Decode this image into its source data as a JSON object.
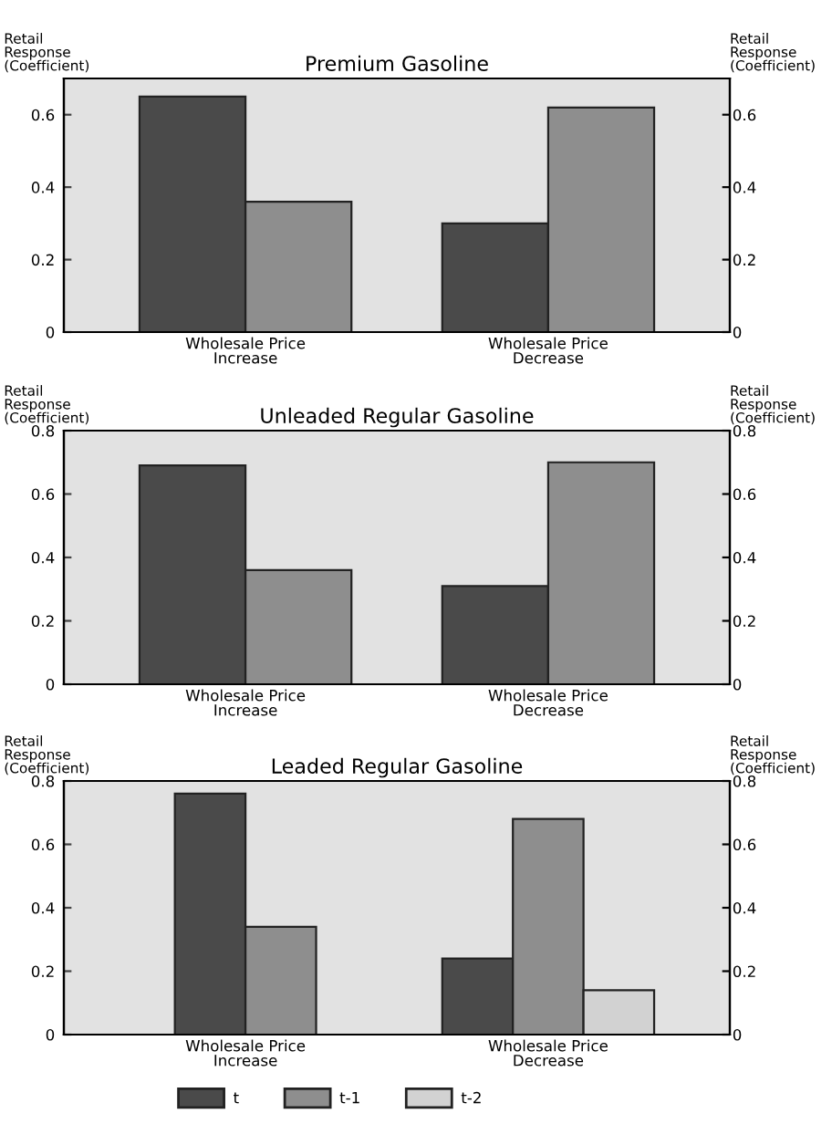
{
  "chart_data": [
    {
      "type": "bar",
      "title": "Premium Gasoline",
      "ylabel": "Retail\nResponse\n(Coefficient)",
      "y2label": "Retail\nResponse\n(Coefficient)",
      "categories": [
        "Wholesale Price\nIncrease",
        "Wholesale Price\nDecrease"
      ],
      "series": [
        {
          "color": "#4a4a4a",
          "values": [
            0.65,
            0.3
          ]
        },
        {
          "color": "#8e8e8e",
          "values": [
            0.36,
            0.62
          ]
        }
      ],
      "ylim": [
        0,
        0.7
      ],
      "yticks": [
        0,
        0.2,
        0.4,
        0.6
      ],
      "y2lim": [
        0,
        0.7
      ],
      "y2ticks": [
        0,
        0.2,
        0.4,
        0.6
      ],
      "grid": false
    },
    {
      "type": "bar",
      "title": "Unleaded Regular Gasoline",
      "ylabel": "Retail\nResponse\n(Coefficient)",
      "y2label": "Retail\nResponse\n(Coefficient)",
      "categories": [
        "Wholesale Price\nIncrease",
        "Wholesale Price\nDecrease"
      ],
      "series": [
        {
          "color": "#4a4a4a",
          "values": [
            0.69,
            0.31
          ]
        },
        {
          "color": "#8e8e8e",
          "values": [
            0.36,
            0.7
          ]
        }
      ],
      "ylim": [
        0,
        0.8
      ],
      "yticks": [
        0,
        0.2,
        0.4,
        0.6,
        0.8
      ],
      "y2lim": [
        0,
        0.8
      ],
      "y2ticks": [
        0,
        0.2,
        0.4,
        0.6,
        0.8
      ],
      "grid": false
    },
    {
      "type": "bar",
      "title": "Leaded Regular Gasoline",
      "ylabel": "Retail\nResponse\n(Coefficient)",
      "y2label": "Retail\nResponse\n(Coefficient)",
      "categories": [
        "Wholesale Price\nIncrease",
        "Wholesale Price\nDecrease"
      ],
      "series": [
        {
          "name": "t",
          "color": "#4a4a4a",
          "values": [
            0.76,
            0.24
          ]
        },
        {
          "name": "t-1",
          "color": "#8e8e8e",
          "values": [
            0.34,
            0.68
          ]
        },
        {
          "name": "t-2",
          "color": "#d2d2d2",
          "values": [
            null,
            0.14
          ]
        }
      ],
      "ylim": [
        0,
        0.8
      ],
      "yticks": [
        0,
        0.2,
        0.4,
        0.6,
        0.8
      ],
      "y2lim": [
        0,
        0.8
      ],
      "y2ticks": [
        0,
        0.2,
        0.4,
        0.6,
        0.8
      ],
      "grid": false,
      "legend": "bottom"
    }
  ]
}
